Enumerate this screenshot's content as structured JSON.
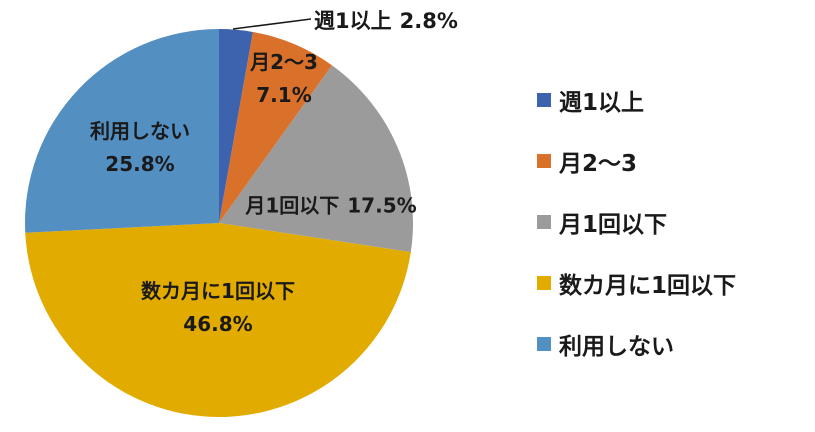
{
  "chart_data": {
    "type": "pie",
    "title": "",
    "categories": [
      "週1以上",
      "月2〜3",
      "月1回以下",
      "数カ月に1回以下",
      "利用しない"
    ],
    "values": [
      2.8,
      7.1,
      17.5,
      46.8,
      25.8
    ],
    "value_labels": [
      "2.8%",
      "7.1%",
      "17.5%",
      "46.8%",
      "25.8%"
    ],
    "colors": [
      "#3E63AE",
      "#D9712B",
      "#9B9B9B",
      "#E2AB00",
      "#548FC2"
    ],
    "start_angle_deg": 0,
    "direction": "clockwise",
    "legend_position": "right",
    "label_style": "category-name-and-percent-on-slice",
    "callout_slice": "週1以上",
    "background_color": "#FFFFFF",
    "text_color": "#1A1A1A"
  },
  "legend": {
    "items": [
      {
        "label": "週1以上",
        "color": "#3E63AE"
      },
      {
        "label": "月2〜3",
        "color": "#D9712B"
      },
      {
        "label": "月1回以下",
        "color": "#9B9B9B"
      },
      {
        "label": "数カ月に1回以下",
        "color": "#E2AB00"
      },
      {
        "label": "利用しない",
        "color": "#548FC2"
      }
    ]
  }
}
